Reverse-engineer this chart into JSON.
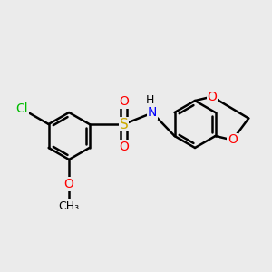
{
  "background_color": "#ebebeb",
  "bond_color": "#000000",
  "bond_width": 1.8,
  "atom_colors": {
    "Cl": "#00bb00",
    "O": "#ff0000",
    "S": "#ccaa00",
    "N": "#0000ff",
    "C": "#000000"
  },
  "font_size": 10,
  "fig_width": 3.0,
  "fig_height": 3.0,
  "xlim": [
    -3.2,
    3.5
  ],
  "ylim": [
    -2.2,
    2.2
  ]
}
